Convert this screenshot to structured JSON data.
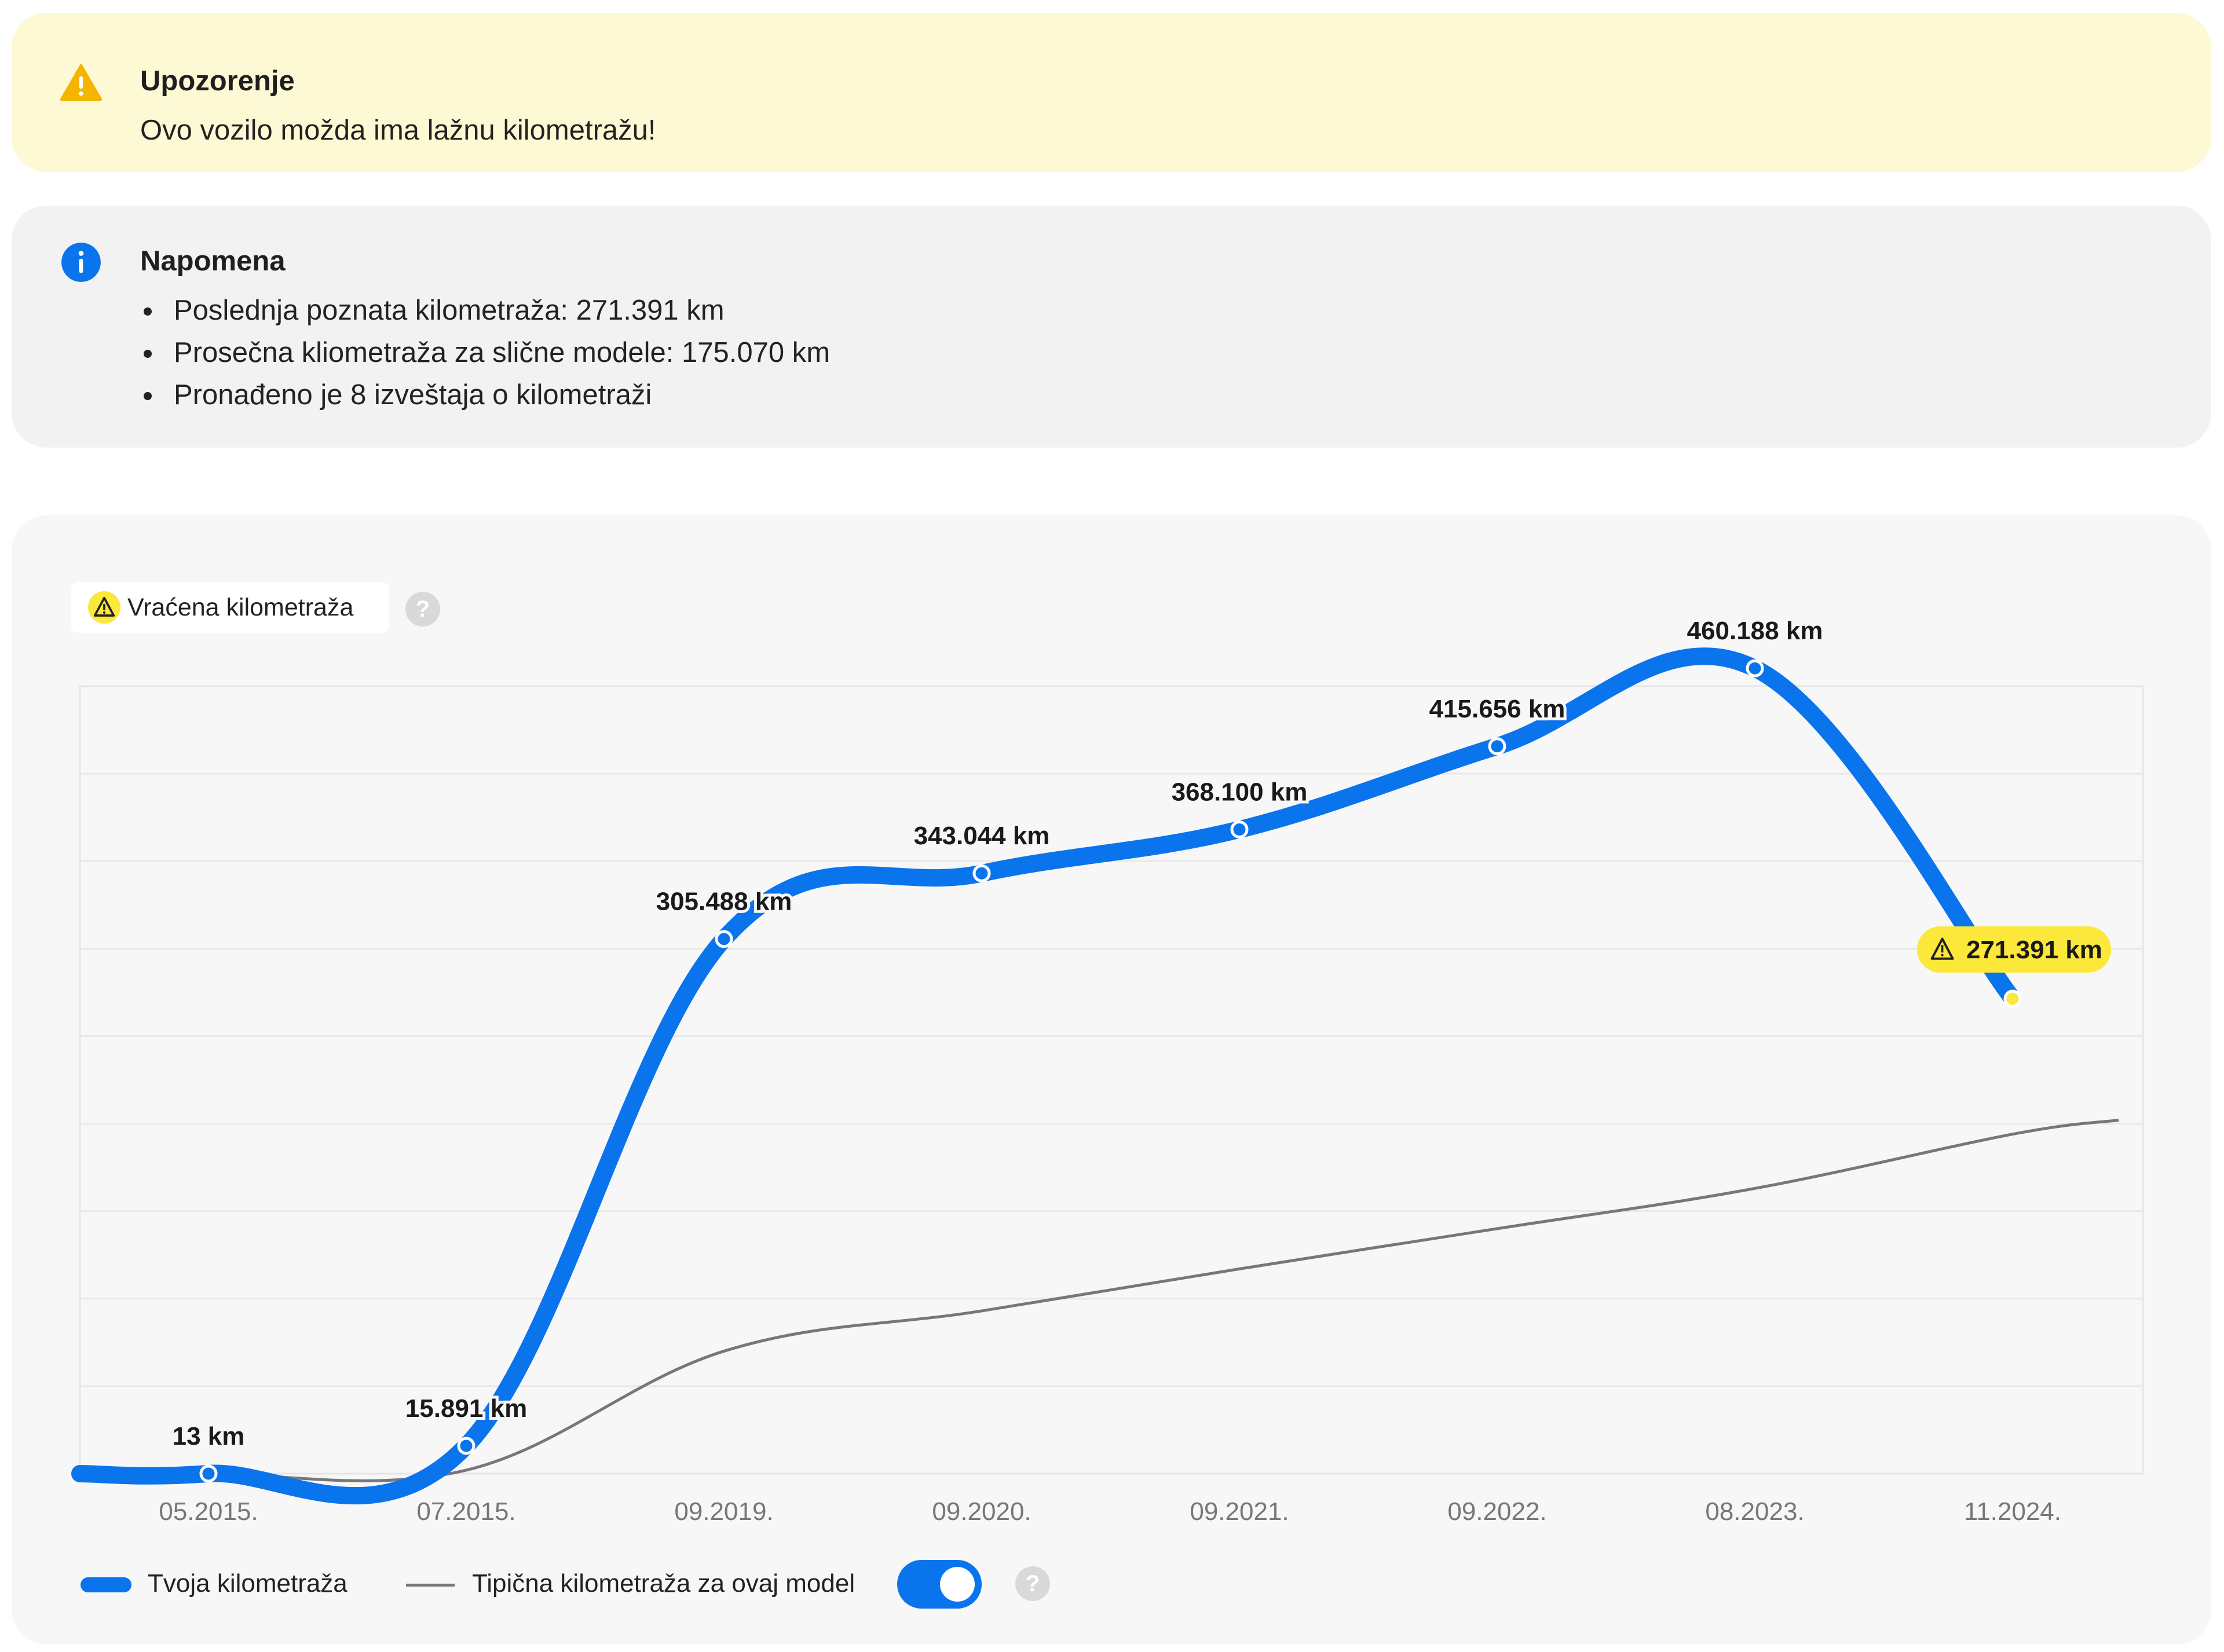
{
  "warning": {
    "title": "Upozorenje",
    "text": "Ovo vozilo možda ima lažnu kilometražu!",
    "icon": "warning-icon",
    "color": "#f5b400"
  },
  "note": {
    "title": "Napomena",
    "icon": "info-icon",
    "color": "#0a74ec",
    "items": [
      "Poslednja poznata kilometraža: 271.391 km",
      "Prosečna kliometraža za slične modele: 175.070 km",
      "Pronađeno je 8 izveštaja o kilometraži"
    ]
  },
  "badge": {
    "label": "Vraćena kilometraža",
    "icon": "warning-icon",
    "help": "?"
  },
  "legend": {
    "series1": "Tvoja kilometraža",
    "series2": "Tipična kilometraža za ovaj model",
    "toggle_on": true,
    "help": "?"
  },
  "chart_data": {
    "type": "line",
    "categories": [
      "05.2015.",
      "07.2015.",
      "09.2019.",
      "09.2020.",
      "09.2021.",
      "09.2022.",
      "08.2023.",
      "11.2024."
    ],
    "series": [
      {
        "name": "Tvoja kilometraža",
        "color": "#0a74ec",
        "values": [
          13,
          15891,
          305488,
          343044,
          368100,
          415656,
          460188,
          271391
        ],
        "labels": [
          "13 km",
          "15.891 km",
          "305.488 km",
          "343.044 km",
          "368.100 km",
          "415.656 km",
          "460.188 km",
          "271.391 km"
        ],
        "flagged_index": 7,
        "flag_color": "#fbe83a"
      },
      {
        "name": "Tipična kilometraža za ovaj model",
        "color": "#777777",
        "values": [
          0,
          2000,
          70000,
          93000,
          117000,
          140000,
          163000,
          194000
        ]
      }
    ],
    "ylim": [
      0,
      450000
    ],
    "grid": true,
    "legend": "bottom-left"
  }
}
